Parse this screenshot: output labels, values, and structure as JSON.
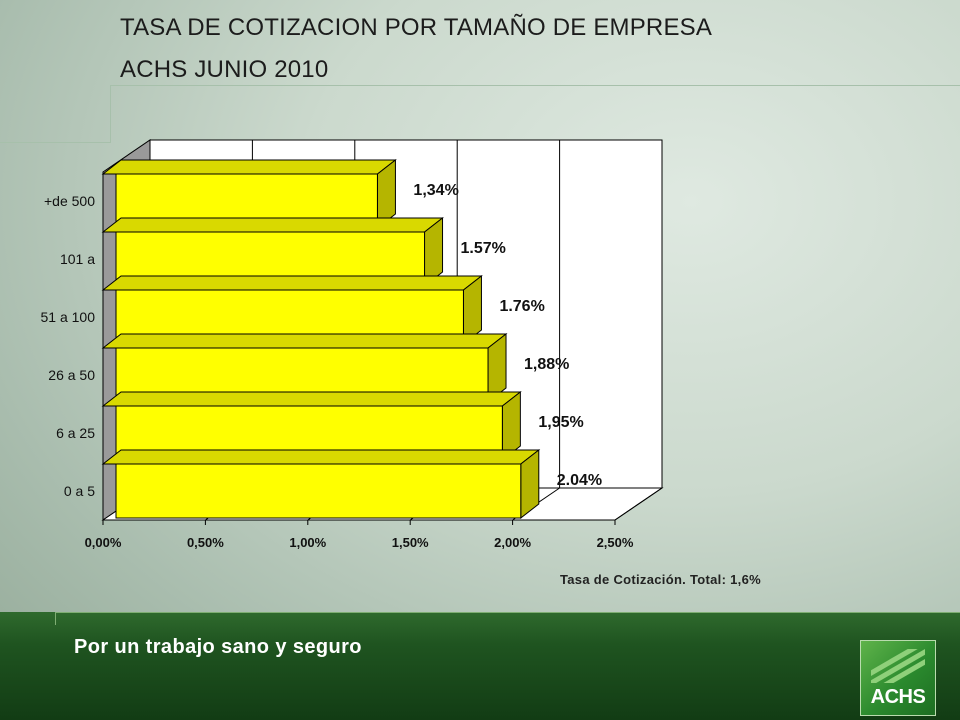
{
  "title_line1": "TASA DE COTIZACION POR TAMAÑO DE EMPRESA",
  "title_line2": "ACHS JUNIO 2010",
  "chart_data": {
    "type": "bar",
    "orientation": "horizontal",
    "style": "3d",
    "categories": [
      "0 a 5",
      "6 a 25",
      "26 a 50",
      "51 a 100",
      "101 a",
      "+de 500"
    ],
    "values": [
      2.04,
      1.95,
      1.88,
      1.76,
      1.57,
      1.34
    ],
    "data_labels": [
      "2.04%",
      "1,95%",
      "1,88%",
      "1.76%",
      "1.57%",
      "1,34%"
    ],
    "x_ticks": [
      "0,00%",
      "0,50%",
      "1,00%",
      "1,50%",
      "2,00%",
      "2,50%"
    ],
    "xlim": [
      0,
      2.5
    ],
    "grid": true,
    "bar_color": "#ffff00",
    "bar_side_color": "#b5b500",
    "bar_top_color": "#d9d900"
  },
  "footnote": "Tasa de Cotización.  Total: 1,6%",
  "footer": {
    "slogan": "Por un trabajo sano y seguro",
    "logo_text": "ACHS"
  }
}
